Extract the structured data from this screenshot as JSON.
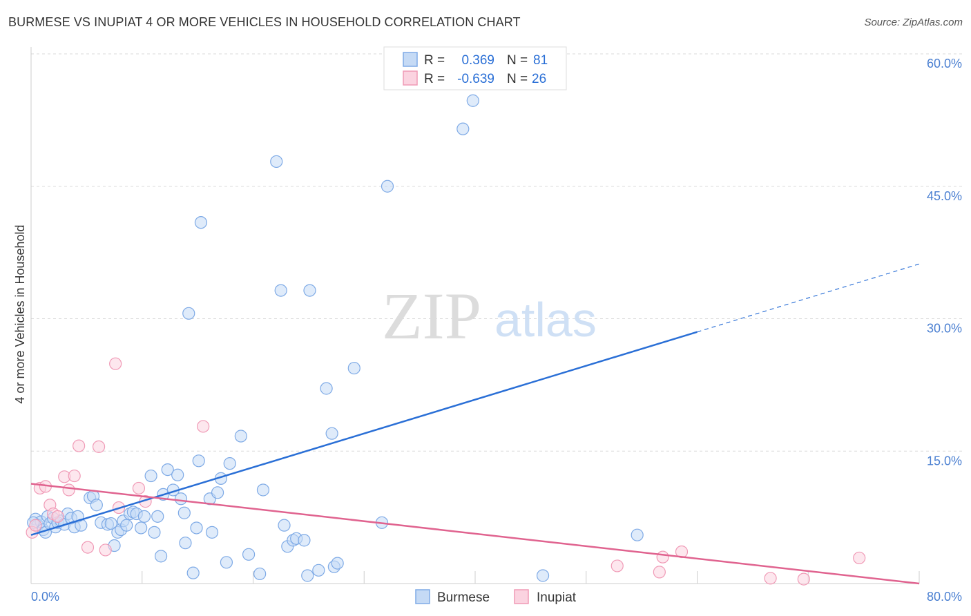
{
  "title": "BURMESE VS INUPIAT 4 OR MORE VEHICLES IN HOUSEHOLD CORRELATION CHART",
  "source": "Source: ZipAtlas.com",
  "watermark": {
    "zip": "ZIP",
    "atlas": "atlas"
  },
  "legend_top": [
    {
      "r_label": "R =",
      "r_value": "0.369",
      "n_label": "N =",
      "n_value": "81"
    },
    {
      "r_label": "R =",
      "r_value": "-0.639",
      "n_label": "N =",
      "n_value": "26"
    }
  ],
  "chart_data": {
    "type": "scatter",
    "xlabel": "",
    "ylabel": "4 or more Vehicles in Household",
    "xlim": [
      0,
      80
    ],
    "ylim": [
      0,
      60
    ],
    "x_tick_labels": [
      {
        "value": 0,
        "label": "0.0%"
      },
      {
        "value": 80,
        "label": "80.0%"
      }
    ],
    "y_tick_labels": [
      {
        "value": 15,
        "label": "15.0%"
      },
      {
        "value": 30,
        "label": "30.0%"
      },
      {
        "value": 45,
        "label": "45.0%"
      },
      {
        "value": 60,
        "label": "60.0%"
      }
    ],
    "grid": true,
    "legend_position": "bottom",
    "series": [
      {
        "name": "Burmese",
        "color": "#7eaae6",
        "fill": "#c5daf5",
        "line_color": "#2a6fd6",
        "r": 0.369,
        "n": 81,
        "trendline": {
          "x0": 0,
          "y0": 5.5,
          "x1": 60,
          "y1": 28.5,
          "dashed_to_x": 80,
          "dashed_to_y": 36.2
        },
        "points": [
          [
            0.4,
            7.3
          ],
          [
            0.6,
            6.6
          ],
          [
            0.9,
            7.0
          ],
          [
            1.1,
            6.1
          ],
          [
            1.3,
            5.8
          ],
          [
            1.5,
            7.6
          ],
          [
            1.7,
            6.8
          ],
          [
            2.0,
            7.4
          ],
          [
            2.2,
            6.4
          ],
          [
            2.4,
            6.9
          ],
          [
            2.7,
            7.1
          ],
          [
            3.0,
            6.7
          ],
          [
            3.3,
            7.9
          ],
          [
            3.6,
            7.4
          ],
          [
            3.9,
            6.4
          ],
          [
            4.2,
            7.6
          ],
          [
            4.5,
            6.6
          ],
          [
            5.3,
            9.7
          ],
          [
            5.6,
            9.9
          ],
          [
            5.9,
            8.9
          ],
          [
            6.3,
            6.9
          ],
          [
            6.9,
            6.7
          ],
          [
            7.2,
            6.8
          ],
          [
            7.5,
            4.3
          ],
          [
            7.8,
            5.8
          ],
          [
            8.1,
            6.1
          ],
          [
            8.3,
            7.1
          ],
          [
            8.6,
            6.6
          ],
          [
            8.9,
            7.9
          ],
          [
            9.2,
            8.1
          ],
          [
            9.5,
            7.9
          ],
          [
            9.9,
            6.3
          ],
          [
            10.2,
            7.6
          ],
          [
            10.8,
            12.2
          ],
          [
            11.1,
            5.8
          ],
          [
            11.4,
            7.6
          ],
          [
            11.7,
            3.1
          ],
          [
            11.9,
            10.1
          ],
          [
            12.3,
            12.9
          ],
          [
            12.8,
            10.6
          ],
          [
            13.2,
            12.3
          ],
          [
            13.5,
            9.6
          ],
          [
            13.8,
            8.0
          ],
          [
            13.9,
            4.6
          ],
          [
            14.2,
            30.6
          ],
          [
            14.6,
            1.2
          ],
          [
            14.9,
            6.3
          ],
          [
            15.1,
            13.9
          ],
          [
            15.3,
            40.9
          ],
          [
            16.1,
            9.6
          ],
          [
            16.3,
            5.8
          ],
          [
            16.8,
            10.3
          ],
          [
            17.1,
            11.9
          ],
          [
            17.6,
            2.4
          ],
          [
            17.9,
            13.6
          ],
          [
            18.9,
            16.7
          ],
          [
            19.6,
            3.3
          ],
          [
            20.6,
            1.1
          ],
          [
            20.9,
            10.6
          ],
          [
            22.1,
            47.8
          ],
          [
            22.5,
            33.2
          ],
          [
            22.8,
            6.6
          ],
          [
            23.1,
            4.2
          ],
          [
            23.6,
            4.9
          ],
          [
            23.9,
            5.1
          ],
          [
            24.6,
            4.9
          ],
          [
            24.9,
            0.9
          ],
          [
            25.1,
            33.2
          ],
          [
            25.9,
            1.5
          ],
          [
            26.6,
            22.1
          ],
          [
            27.1,
            17.0
          ],
          [
            27.3,
            1.9
          ],
          [
            27.6,
            2.3
          ],
          [
            29.1,
            24.4
          ],
          [
            31.6,
            6.9
          ],
          [
            32.1,
            45.0
          ],
          [
            38.9,
            51.5
          ],
          [
            39.8,
            54.7
          ],
          [
            46.1,
            0.9
          ],
          [
            54.6,
            5.5
          ],
          [
            0.2,
            6.9
          ]
        ]
      },
      {
        "name": "Inupiat",
        "color": "#f09ab6",
        "fill": "#fbd3e0",
        "line_color": "#e0638f",
        "r": -0.639,
        "n": 26,
        "trendline": {
          "x0": 0,
          "y0": 11.3,
          "x1": 80,
          "y1": 0.0
        },
        "points": [
          [
            0.1,
            5.8
          ],
          [
            0.4,
            6.6
          ],
          [
            0.8,
            10.8
          ],
          [
            1.3,
            11.0
          ],
          [
            1.7,
            8.9
          ],
          [
            2.0,
            7.9
          ],
          [
            2.4,
            7.6
          ],
          [
            3.0,
            12.1
          ],
          [
            3.4,
            10.6
          ],
          [
            3.9,
            12.2
          ],
          [
            4.3,
            15.6
          ],
          [
            5.1,
            4.1
          ],
          [
            6.1,
            15.5
          ],
          [
            6.7,
            3.8
          ],
          [
            7.6,
            24.9
          ],
          [
            7.9,
            8.6
          ],
          [
            9.7,
            10.8
          ],
          [
            10.3,
            9.3
          ],
          [
            15.5,
            17.8
          ],
          [
            52.8,
            2.0
          ],
          [
            56.6,
            1.3
          ],
          [
            56.9,
            3.0
          ],
          [
            58.6,
            3.6
          ],
          [
            66.6,
            0.6
          ],
          [
            69.6,
            0.5
          ],
          [
            74.6,
            2.9
          ]
        ]
      }
    ]
  }
}
